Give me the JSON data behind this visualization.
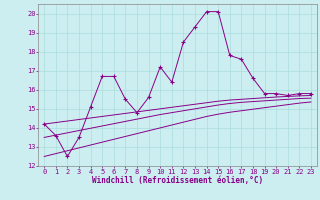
{
  "x": [
    0,
    1,
    2,
    3,
    4,
    5,
    6,
    7,
    8,
    9,
    10,
    11,
    12,
    13,
    14,
    15,
    16,
    17,
    18,
    19,
    20,
    21,
    22,
    23
  ],
  "line_main": [
    14.2,
    13.6,
    12.5,
    13.5,
    15.1,
    16.7,
    16.7,
    15.5,
    14.8,
    15.6,
    17.2,
    16.4,
    18.5,
    19.3,
    20.1,
    20.1,
    17.8,
    17.6,
    16.6,
    15.8,
    15.8,
    15.7,
    15.8,
    15.8
  ],
  "line_top": [
    14.2,
    14.28,
    14.36,
    14.44,
    14.52,
    14.6,
    14.68,
    14.76,
    14.84,
    14.92,
    15.0,
    15.08,
    15.16,
    15.24,
    15.32,
    15.4,
    15.46,
    15.5,
    15.54,
    15.58,
    15.62,
    15.65,
    15.68,
    15.7
  ],
  "line_mid": [
    13.5,
    13.62,
    13.74,
    13.86,
    13.98,
    14.1,
    14.22,
    14.34,
    14.46,
    14.58,
    14.7,
    14.8,
    14.9,
    15.0,
    15.1,
    15.2,
    15.28,
    15.34,
    15.38,
    15.42,
    15.46,
    15.5,
    15.54,
    15.56
  ],
  "line_bot": [
    12.5,
    12.65,
    12.8,
    12.95,
    13.1,
    13.25,
    13.4,
    13.55,
    13.7,
    13.85,
    14.0,
    14.15,
    14.3,
    14.45,
    14.6,
    14.72,
    14.82,
    14.9,
    14.98,
    15.06,
    15.14,
    15.22,
    15.3,
    15.36
  ],
  "bg_color": "#cceef0",
  "line_color": "#880088",
  "xlim": [
    -0.5,
    23.5
  ],
  "ylim": [
    12,
    20.5
  ],
  "yticks": [
    12,
    13,
    14,
    15,
    16,
    17,
    18,
    19,
    20
  ],
  "xticks": [
    0,
    1,
    2,
    3,
    4,
    5,
    6,
    7,
    8,
    9,
    10,
    11,
    12,
    13,
    14,
    15,
    16,
    17,
    18,
    19,
    20,
    21,
    22,
    23
  ],
  "xlabel": "Windchill (Refroidissement éolien,°C)",
  "grid_color": "#aadddd"
}
